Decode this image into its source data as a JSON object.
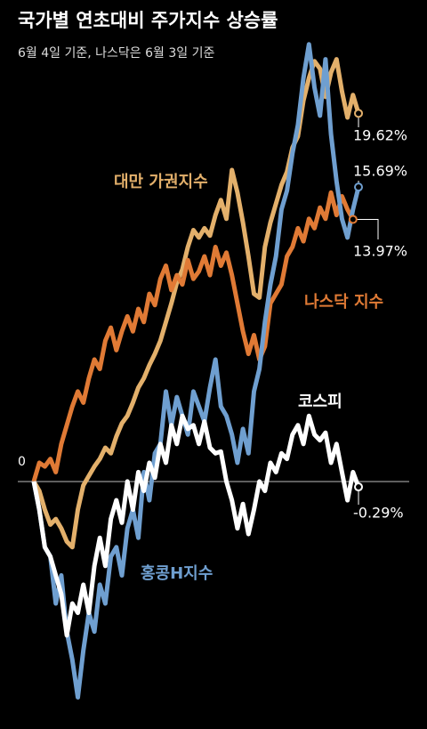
{
  "chart_data": {
    "type": "line",
    "title": "국가별 연초대비 주가지수 상승률",
    "subtitle": "6월 4일 기준, 나스닥은 6월 3일 기준",
    "ylim": [
      -13,
      24
    ],
    "yticks": [
      0
    ],
    "series": [
      {
        "name": "대만 가권지수",
        "color": "#e3b06b",
        "values": [
          0,
          -0.5,
          -1.5,
          -2.3,
          -2.0,
          -2.5,
          -3.2,
          -3.5,
          -1.5,
          -0.2,
          0.3,
          0.8,
          1.2,
          1.8,
          1.5,
          2.4,
          3.1,
          3.5,
          4.2,
          5.0,
          5.5,
          6.2,
          6.8,
          7.5,
          8.5,
          9.5,
          10.6,
          11.3,
          12.5,
          13.4,
          13.0,
          13.5,
          13.1,
          14.2,
          15.0,
          14.0,
          16.6,
          15.4,
          13.8,
          12.0,
          10.0,
          9.8,
          12.5,
          13.8,
          14.8,
          15.8,
          16.5,
          17.8,
          18.4,
          20.3,
          21.5,
          22.4,
          22.0,
          20.5,
          21.8,
          22.5,
          20.8,
          19.4,
          20.6,
          19.62
        ],
        "value_labels": [
          null,
          null,
          null,
          null,
          null,
          null,
          null,
          null,
          null,
          null,
          null,
          null,
          null,
          null,
          null,
          null,
          null,
          null,
          null,
          null,
          null,
          null,
          null,
          null,
          null,
          null,
          null,
          null,
          null,
          null,
          null,
          null,
          null,
          null,
          null,
          null,
          null,
          null,
          null,
          null,
          null,
          null,
          null,
          null,
          null,
          null,
          null,
          null,
          null,
          null,
          null,
          null,
          null,
          null,
          null,
          null,
          null,
          null,
          null,
          "19.62%"
        ]
      },
      {
        "name": "홍콩H지수",
        "color": "#6f9fd0",
        "values": [
          0,
          -1.5,
          -3.5,
          -4.0,
          -6.5,
          -5.0,
          -8.0,
          -9.5,
          -11.5,
          -9.0,
          -7.0,
          -8.0,
          -5.5,
          -6.5,
          -4.0,
          -3.5,
          -5.0,
          -2.5,
          -1.5,
          -3.0,
          0.5,
          -1.0,
          1.5,
          2.0,
          4.8,
          3.0,
          4.5,
          3.5,
          2.5,
          4.8,
          4.0,
          3.2,
          5.0,
          6.5,
          4.0,
          3.5,
          2.5,
          1.0,
          2.8,
          1.5,
          4.8,
          6.0,
          8.5,
          10.5,
          12.0,
          14.5,
          15.5,
          17.5,
          19.0,
          21.5,
          23.3,
          21.0,
          19.5,
          22.5,
          18.5,
          16.0,
          14.0,
          13.0,
          14.5,
          15.69
        ],
        "value_labels": [
          null,
          null,
          null,
          null,
          null,
          null,
          null,
          null,
          null,
          null,
          null,
          null,
          null,
          null,
          null,
          null,
          null,
          null,
          null,
          null,
          null,
          null,
          null,
          null,
          null,
          null,
          null,
          null,
          null,
          null,
          null,
          null,
          null,
          null,
          null,
          null,
          null,
          null,
          null,
          null,
          null,
          null,
          null,
          null,
          null,
          null,
          null,
          null,
          null,
          null,
          null,
          null,
          null,
          null,
          null,
          null,
          null,
          null,
          null,
          "15.69%"
        ]
      },
      {
        "name": "나스닥 지수",
        "color": "#e07a35",
        "values": [
          0,
          1.0,
          0.8,
          1.2,
          0.5,
          2.0,
          3.0,
          4.0,
          4.8,
          4.2,
          5.5,
          6.5,
          6.0,
          7.5,
          8.2,
          7.0,
          8.0,
          8.8,
          8.0,
          9.2,
          8.5,
          10.0,
          9.4,
          10.8,
          11.5,
          10.2,
          11.0,
          10.5,
          11.8,
          10.8,
          11.2,
          12.0,
          11.0,
          12.5,
          11.5,
          12.2,
          11.0,
          9.5,
          8.0,
          6.8,
          7.8,
          6.5,
          7.2,
          9.5,
          10.0,
          10.5,
          12.0,
          12.5,
          13.5,
          12.8,
          14.0,
          13.5,
          14.6,
          14.0,
          15.4,
          14.2,
          15.2,
          14.5,
          13.97
        ],
        "value_labels": [
          null,
          null,
          null,
          null,
          null,
          null,
          null,
          null,
          null,
          null,
          null,
          null,
          null,
          null,
          null,
          null,
          null,
          null,
          null,
          null,
          null,
          null,
          null,
          null,
          null,
          null,
          null,
          null,
          null,
          null,
          null,
          null,
          null,
          null,
          null,
          null,
          null,
          null,
          null,
          null,
          null,
          null,
          null,
          null,
          null,
          null,
          null,
          null,
          null,
          null,
          null,
          null,
          null,
          null,
          null,
          null,
          null,
          null,
          "13.97%"
        ]
      },
      {
        "name": "코스피",
        "color": "#ffffff",
        "values": [
          0,
          -1.5,
          -3.5,
          -4.0,
          -5.0,
          -6.0,
          -8.2,
          -6.5,
          -7.0,
          -5.5,
          -7.0,
          -4.5,
          -3.0,
          -4.5,
          -2.0,
          -1.0,
          -2.2,
          0,
          -1.5,
          0.5,
          -0.5,
          1.0,
          0.2,
          2.0,
          1.0,
          3.0,
          2.0,
          3.5,
          2.8,
          3.0,
          2.0,
          3.2,
          1.8,
          1.5,
          1.6,
          0,
          -1.0,
          -2.5,
          -1.2,
          -2.8,
          -1.5,
          0,
          -0.5,
          1.0,
          0.5,
          1.5,
          1.2,
          2.5,
          3.0,
          2.0,
          3.5,
          2.5,
          2.2,
          2.6,
          1.0,
          2.0,
          0.5,
          -1.0,
          0.5,
          -0.29
        ],
        "value_labels": [
          null,
          null,
          null,
          null,
          null,
          null,
          null,
          null,
          null,
          null,
          null,
          null,
          null,
          null,
          null,
          null,
          null,
          null,
          null,
          null,
          null,
          null,
          null,
          null,
          null,
          null,
          null,
          null,
          null,
          null,
          null,
          null,
          null,
          null,
          null,
          null,
          null,
          null,
          null,
          null,
          null,
          null,
          null,
          null,
          null,
          null,
          null,
          null,
          null,
          null,
          null,
          null,
          null,
          null,
          null,
          null,
          null,
          null,
          null,
          "-0.29%"
        ]
      }
    ]
  }
}
